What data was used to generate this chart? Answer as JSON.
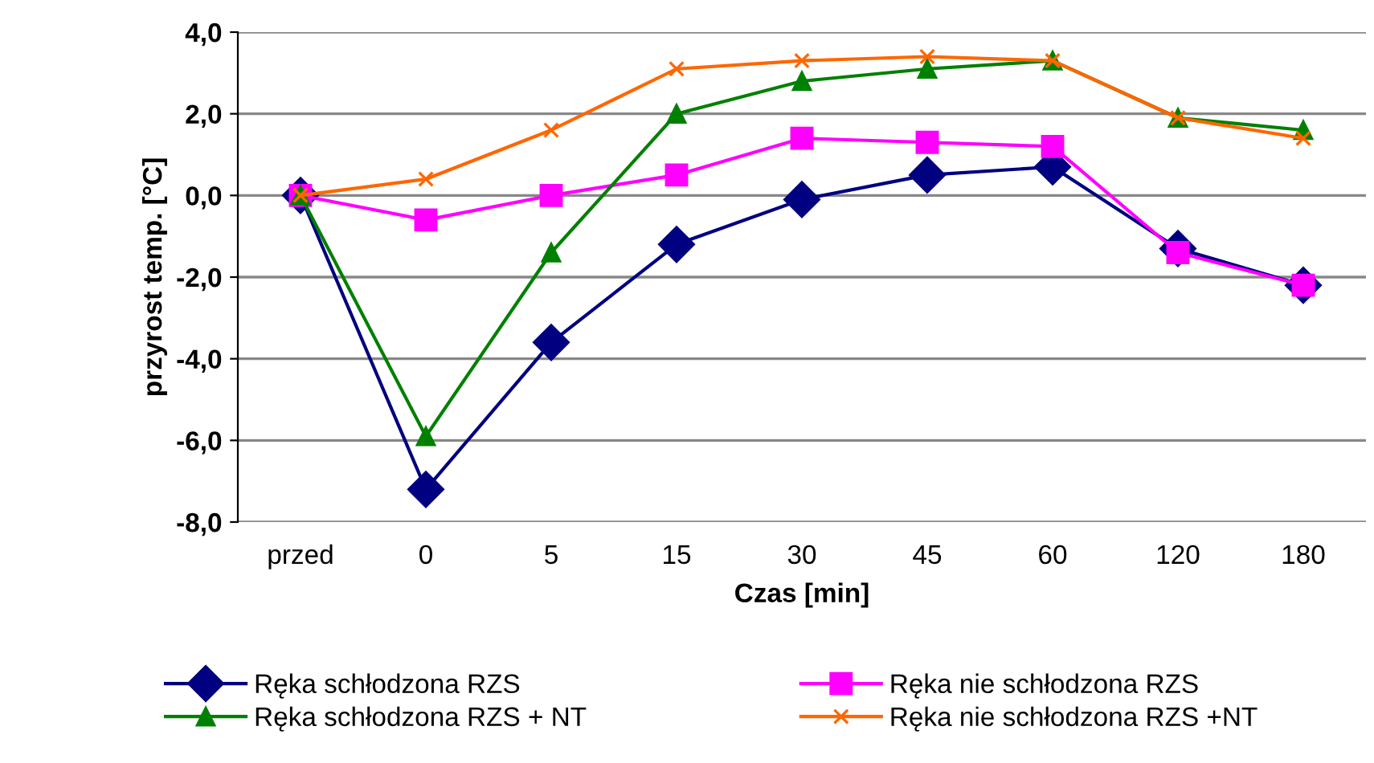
{
  "chart_data": {
    "type": "line",
    "xlabel": "Czas [min]",
    "ylabel": "przyrost temp. [°C]",
    "categories": [
      "przed",
      "0",
      "5",
      "15",
      "30",
      "45",
      "60",
      "120",
      "180"
    ],
    "series": [
      {
        "name": "Ręka schłodzona RZS",
        "color": "#000080",
        "marker": "diamond",
        "values": [
          0,
          -7.2,
          -3.6,
          -1.2,
          -0.1,
          0.5,
          0.7,
          -1.3,
          -2.2
        ]
      },
      {
        "name": "Ręka nie schłodzona RZS",
        "color": "#ff00ff",
        "marker": "square",
        "values": [
          0,
          -0.6,
          0.0,
          0.5,
          1.4,
          1.3,
          1.2,
          -1.4,
          -2.2
        ]
      },
      {
        "name": "Ręka schłodzona RZS + NT",
        "color": "#008000",
        "marker": "triangle",
        "values": [
          0,
          -5.9,
          -1.4,
          2.0,
          2.8,
          3.1,
          3.3,
          1.9,
          1.6
        ]
      },
      {
        "name": "Ręka nie schłodzona RZS +NT",
        "color": "#ff6600",
        "marker": "cross",
        "values": [
          0,
          0.4,
          1.6,
          3.1,
          3.3,
          3.4,
          3.3,
          1.9,
          1.4
        ]
      }
    ],
    "ylim": [
      -8,
      4
    ],
    "yticks": [
      {
        "value": -8,
        "label": "-8,0"
      },
      {
        "value": -6,
        "label": "-6,0"
      },
      {
        "value": -4,
        "label": "-4,0"
      },
      {
        "value": -2,
        "label": "-2,0"
      },
      {
        "value": 0,
        "label": "0,0"
      },
      {
        "value": 2,
        "label": "2,0"
      },
      {
        "value": 4,
        "label": "4,0"
      }
    ],
    "grid": "y",
    "legend": "bottom",
    "line_style": "solid"
  }
}
